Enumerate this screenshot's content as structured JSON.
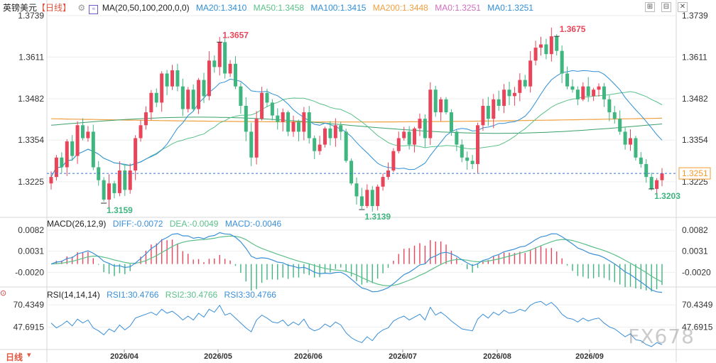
{
  "header": {
    "symbol": "英镑美元",
    "period": "【日线】",
    "ma_label": "MA(20,50,100,200,0,0)",
    "ma20": "MA20:1.3410",
    "ma50": "MA50:1.3458",
    "ma100": "MA100:1.3415",
    "ma200": "MA200:1.3448",
    "ma0a": "MA0:1.3251",
    "ma0b": "MA0:1.3251"
  },
  "macd_header": {
    "label": "MACD(26,12,9)",
    "diff": "DIFF:-0.0072",
    "dea": "DEA:-0.0049",
    "macd": "MACD:-0.0046"
  },
  "rsi_header": {
    "label": "RSI(14,14,14)",
    "rsi1": "RSI1:30.4766",
    "rsi2": "RSI2:30.4766",
    "rsi3": "RSI3:30.4766"
  },
  "bottom_label": "日线",
  "watermark": "FX678",
  "colors": {
    "up": "#e8455a",
    "down": "#3fb57f",
    "ma20": "#2f8fd6",
    "ma50": "#5cc08a",
    "ma100": "#3aa06a",
    "ma200": "#f0a040",
    "diff": "#3a8fd8",
    "dea": "#5cbf8a",
    "rsi": "#3a8fd8",
    "current": "#f39a2b"
  },
  "chart_data": [
    {
      "type": "candlestick",
      "title": "英镑美元【日线】",
      "y_ticks": [
        "1.3739",
        "1.3611",
        "1.3482",
        "1.3354",
        "1.3225"
      ],
      "ylim": [
        1.3115,
        1.3739
      ],
      "x_ticks": [
        "2026/04",
        "2026/05",
        "2026/06",
        "2026/07",
        "2026/08",
        "2026/09"
      ],
      "current_price": "1.3251",
      "annotations": [
        {
          "label": "1.3657",
          "type": "high"
        },
        {
          "label": "1.3675",
          "type": "high"
        },
        {
          "label": "1.3159",
          "type": "low"
        },
        {
          "label": "1.3139",
          "type": "low"
        },
        {
          "label": "1.3203",
          "type": "low"
        }
      ],
      "close_path": [
        1.324,
        1.33,
        1.327,
        1.335,
        1.3305,
        1.34,
        1.336,
        1.338,
        1.327,
        1.323,
        1.317,
        1.322,
        1.319,
        1.326,
        1.32,
        1.326,
        1.336,
        1.34,
        1.344,
        1.35,
        1.347,
        1.356,
        1.352,
        1.357,
        1.352,
        1.345,
        1.351,
        1.345,
        1.354,
        1.349,
        1.36,
        1.358,
        1.3657,
        1.356,
        1.359,
        1.352,
        1.346,
        1.338,
        1.33,
        1.342,
        1.35,
        1.347,
        1.343,
        1.341,
        1.344,
        1.338,
        1.341,
        1.338,
        1.344,
        1.336,
        1.332,
        1.334,
        1.339,
        1.336,
        1.34,
        1.338,
        1.329,
        1.322,
        1.318,
        1.315,
        1.32,
        1.315,
        1.321,
        1.324,
        1.326,
        1.332,
        1.336,
        1.338,
        1.334,
        1.339,
        1.342,
        1.336,
        1.351,
        1.344,
        1.348,
        1.344,
        1.338,
        1.334,
        1.33,
        1.329,
        1.328,
        1.34,
        1.346,
        1.342,
        1.348,
        1.346,
        1.351,
        1.349,
        1.35,
        1.354,
        1.352,
        1.36,
        1.364,
        1.365,
        1.362,
        1.3675,
        1.363,
        1.356,
        1.352,
        1.351,
        1.348,
        1.352,
        1.349,
        1.351,
        1.352,
        1.348,
        1.344,
        1.342,
        1.338,
        1.334,
        1.336,
        1.33,
        1.328,
        1.324,
        1.3203,
        1.323,
        1.3251
      ]
    },
    {
      "type": "macd",
      "y_ticks": [
        "0.0082",
        "0.0031",
        "-0.0020"
      ],
      "ylim": [
        -0.0052,
        0.0092
      ],
      "diff": "-0.0072",
      "dea": "-0.0049",
      "macd": "-0.0046"
    },
    {
      "type": "line",
      "name": "RSI",
      "y_ticks": [
        "70.4349",
        "47.6915"
      ],
      "ylim": [
        25,
        80
      ],
      "rsi_path": [
        52,
        47,
        50,
        54,
        49,
        56,
        52,
        55,
        47,
        44,
        40,
        46,
        43,
        50,
        45,
        49,
        57,
        59,
        61,
        63,
        60,
        66,
        62,
        64,
        60,
        55,
        59,
        55,
        62,
        58,
        66,
        63,
        70,
        60,
        62,
        57,
        52,
        47,
        43,
        55,
        60,
        57,
        53,
        52,
        55,
        49,
        53,
        50,
        56,
        47,
        44,
        46,
        51,
        48,
        53,
        50,
        42,
        37,
        34,
        32,
        38,
        34,
        41,
        45,
        47,
        54,
        57,
        59,
        55,
        58,
        61,
        55,
        68,
        60,
        63,
        59,
        54,
        50,
        46,
        45,
        44,
        56,
        61,
        57,
        63,
        60,
        65,
        62,
        63,
        66,
        64,
        70,
        73,
        74,
        70,
        73,
        68,
        61,
        57,
        56,
        53,
        57,
        54,
        56,
        57,
        52,
        48,
        46,
        42,
        38,
        41,
        35,
        34,
        30,
        28,
        32,
        30
      ]
    }
  ]
}
